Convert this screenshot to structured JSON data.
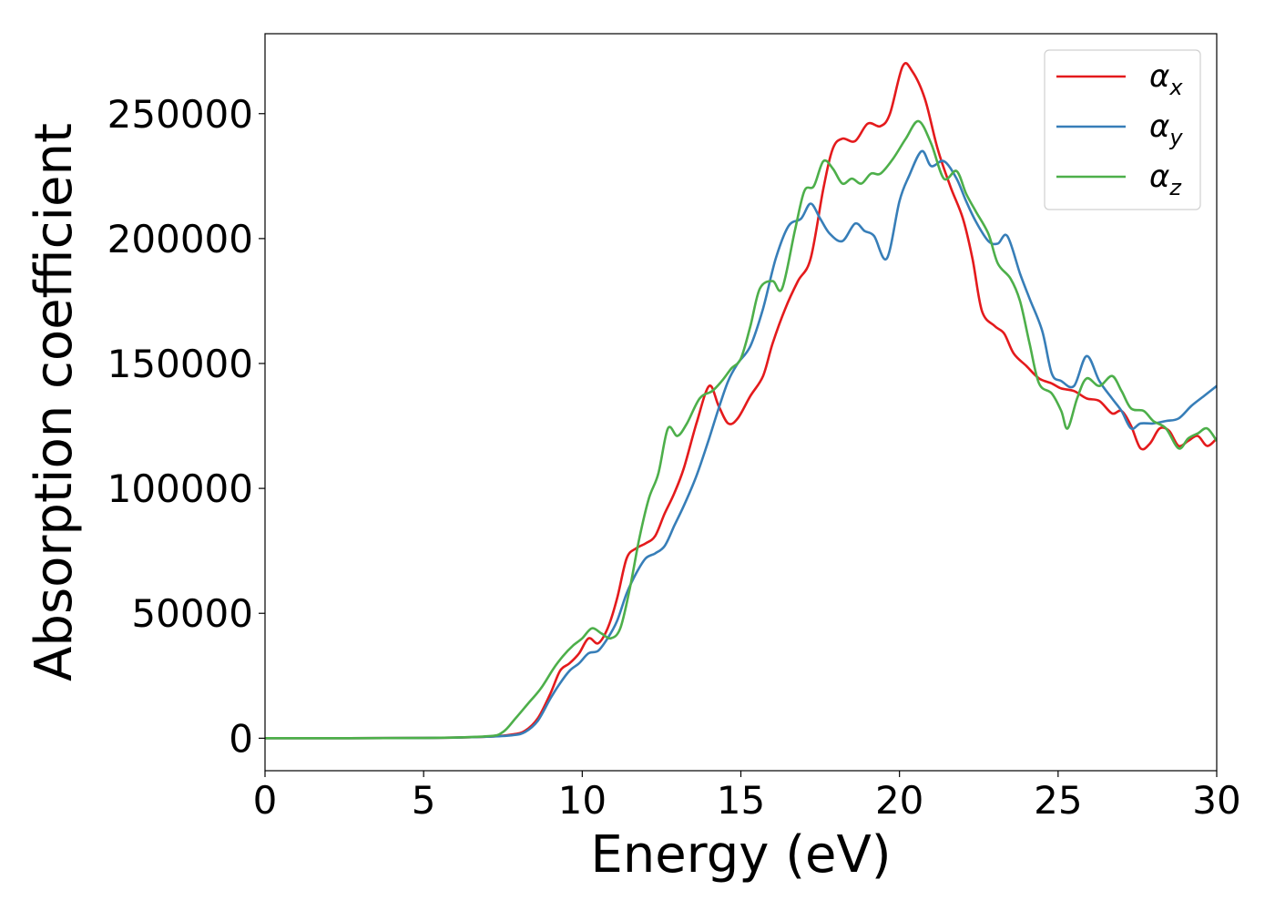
{
  "chart_data": {
    "type": "line",
    "xlabel": "Energy (eV)",
    "ylabel": "Absorption coefficient",
    "xlim": [
      0,
      30
    ],
    "ylim": [
      -13000,
      282000
    ],
    "xticks": [
      0,
      5,
      10,
      15,
      20,
      25,
      30
    ],
    "yticks": [
      0,
      50000,
      100000,
      150000,
      200000,
      250000
    ],
    "grid": false,
    "legend_position": "top-right",
    "series": [
      {
        "name": "α_x",
        "label_base": "α",
        "label_sub": "x",
        "color": "#e41a1c",
        "points": [
          [
            0,
            0
          ],
          [
            5,
            100
          ],
          [
            7,
            600
          ],
          [
            7.8,
            1500
          ],
          [
            8.2,
            3000
          ],
          [
            8.6,
            8000
          ],
          [
            9,
            18000
          ],
          [
            9.3,
            27000
          ],
          [
            9.6,
            30000
          ],
          [
            9.9,
            34000
          ],
          [
            10.2,
            40000
          ],
          [
            10.5,
            38000
          ],
          [
            10.8,
            44000
          ],
          [
            11.1,
            56000
          ],
          [
            11.4,
            72000
          ],
          [
            11.7,
            76000
          ],
          [
            12,
            78000
          ],
          [
            12.3,
            81000
          ],
          [
            12.6,
            90000
          ],
          [
            12.9,
            98000
          ],
          [
            13.2,
            108000
          ],
          [
            13.6,
            126000
          ],
          [
            14,
            141000
          ],
          [
            14.3,
            133000
          ],
          [
            14.6,
            126000
          ],
          [
            14.9,
            128000
          ],
          [
            15.3,
            137000
          ],
          [
            15.7,
            145000
          ],
          [
            16,
            158000
          ],
          [
            16.4,
            172000
          ],
          [
            16.8,
            183000
          ],
          [
            17.2,
            192000
          ],
          [
            17.6,
            220000
          ],
          [
            17.9,
            236000
          ],
          [
            18.2,
            240000
          ],
          [
            18.6,
            239000
          ],
          [
            19,
            246000
          ],
          [
            19.4,
            245000
          ],
          [
            19.7,
            250000
          ],
          [
            20.1,
            269000
          ],
          [
            20.4,
            267000
          ],
          [
            20.8,
            256000
          ],
          [
            21.2,
            236000
          ],
          [
            21.6,
            221000
          ],
          [
            22,
            208000
          ],
          [
            22.3,
            192000
          ],
          [
            22.6,
            171000
          ],
          [
            23,
            165000
          ],
          [
            23.3,
            162000
          ],
          [
            23.6,
            154000
          ],
          [
            24,
            149000
          ],
          [
            24.4,
            144000
          ],
          [
            24.8,
            142000
          ],
          [
            25.1,
            140000
          ],
          [
            25.5,
            139000
          ],
          [
            25.9,
            136000
          ],
          [
            26.3,
            135000
          ],
          [
            26.7,
            130000
          ],
          [
            27,
            131000
          ],
          [
            27.3,
            125000
          ],
          [
            27.6,
            116000
          ],
          [
            27.9,
            118000
          ],
          [
            28.2,
            124000
          ],
          [
            28.5,
            123000
          ],
          [
            28.8,
            117000
          ],
          [
            29.1,
            119000
          ],
          [
            29.4,
            121000
          ],
          [
            29.7,
            117000
          ],
          [
            30,
            120000
          ]
        ]
      },
      {
        "name": "α_y",
        "label_base": "α",
        "label_sub": "y",
        "color": "#377eb8",
        "points": [
          [
            0,
            0
          ],
          [
            5,
            100
          ],
          [
            7,
            600
          ],
          [
            7.8,
            1200
          ],
          [
            8.2,
            2500
          ],
          [
            8.6,
            7000
          ],
          [
            9,
            16000
          ],
          [
            9.3,
            22000
          ],
          [
            9.6,
            27000
          ],
          [
            9.9,
            30000
          ],
          [
            10.2,
            34000
          ],
          [
            10.5,
            35000
          ],
          [
            10.8,
            40000
          ],
          [
            11.1,
            47000
          ],
          [
            11.4,
            58000
          ],
          [
            11.7,
            66000
          ],
          [
            12,
            72000
          ],
          [
            12.3,
            74000
          ],
          [
            12.6,
            77000
          ],
          [
            12.9,
            85000
          ],
          [
            13.2,
            93000
          ],
          [
            13.6,
            105000
          ],
          [
            14,
            120000
          ],
          [
            14.3,
            132000
          ],
          [
            14.6,
            143000
          ],
          [
            14.9,
            150000
          ],
          [
            15.3,
            157000
          ],
          [
            15.7,
            172000
          ],
          [
            16.1,
            192000
          ],
          [
            16.5,
            205000
          ],
          [
            16.9,
            208000
          ],
          [
            17.2,
            214000
          ],
          [
            17.5,
            208000
          ],
          [
            17.8,
            202000
          ],
          [
            18.2,
            199000
          ],
          [
            18.6,
            206000
          ],
          [
            18.9,
            203000
          ],
          [
            19.2,
            201000
          ],
          [
            19.6,
            192000
          ],
          [
            20,
            215000
          ],
          [
            20.3,
            225000
          ],
          [
            20.7,
            235000
          ],
          [
            21,
            229000
          ],
          [
            21.4,
            231000
          ],
          [
            21.8,
            224000
          ],
          [
            22.1,
            215000
          ],
          [
            22.4,
            207000
          ],
          [
            22.8,
            199000
          ],
          [
            23.1,
            198000
          ],
          [
            23.4,
            201000
          ],
          [
            23.8,
            186000
          ],
          [
            24.1,
            176000
          ],
          [
            24.5,
            163000
          ],
          [
            24.8,
            146000
          ],
          [
            25.1,
            143000
          ],
          [
            25.5,
            141000
          ],
          [
            25.9,
            153000
          ],
          [
            26.3,
            143000
          ],
          [
            26.7,
            136000
          ],
          [
            27,
            131000
          ],
          [
            27.3,
            124000
          ],
          [
            27.6,
            126000
          ],
          [
            28,
            126000
          ],
          [
            28.4,
            127000
          ],
          [
            28.8,
            128000
          ],
          [
            29.2,
            133000
          ],
          [
            29.6,
            137000
          ],
          [
            30,
            141000
          ]
        ]
      },
      {
        "name": "α_z",
        "label_base": "α",
        "label_sub": "z",
        "color": "#4daf4a",
        "points": [
          [
            0,
            0
          ],
          [
            5,
            100
          ],
          [
            7,
            800
          ],
          [
            7.5,
            2500
          ],
          [
            7.9,
            8000
          ],
          [
            8.3,
            14000
          ],
          [
            8.7,
            20000
          ],
          [
            9.1,
            28000
          ],
          [
            9.4,
            33000
          ],
          [
            9.7,
            37000
          ],
          [
            10,
            40000
          ],
          [
            10.3,
            44000
          ],
          [
            10.6,
            42000
          ],
          [
            10.9,
            40000
          ],
          [
            11.2,
            44000
          ],
          [
            11.5,
            60000
          ],
          [
            11.8,
            80000
          ],
          [
            12.1,
            96000
          ],
          [
            12.4,
            106000
          ],
          [
            12.7,
            124000
          ],
          [
            13,
            121000
          ],
          [
            13.3,
            126000
          ],
          [
            13.7,
            136000
          ],
          [
            14.1,
            139000
          ],
          [
            14.4,
            143000
          ],
          [
            14.7,
            148000
          ],
          [
            15,
            152000
          ],
          [
            15.3,
            165000
          ],
          [
            15.6,
            180000
          ],
          [
            16,
            183000
          ],
          [
            16.3,
            180000
          ],
          [
            16.7,
            203000
          ],
          [
            17,
            219000
          ],
          [
            17.3,
            221000
          ],
          [
            17.6,
            231000
          ],
          [
            17.9,
            228000
          ],
          [
            18.2,
            222000
          ],
          [
            18.5,
            224000
          ],
          [
            18.8,
            222000
          ],
          [
            19.1,
            226000
          ],
          [
            19.4,
            226000
          ],
          [
            19.8,
            232000
          ],
          [
            20.2,
            240000
          ],
          [
            20.6,
            247000
          ],
          [
            21,
            238000
          ],
          [
            21.4,
            224000
          ],
          [
            21.8,
            227000
          ],
          [
            22.1,
            218000
          ],
          [
            22.4,
            211000
          ],
          [
            22.8,
            202000
          ],
          [
            23.1,
            190000
          ],
          [
            23.5,
            184000
          ],
          [
            23.8,
            175000
          ],
          [
            24.1,
            158000
          ],
          [
            24.4,
            142000
          ],
          [
            24.8,
            138000
          ],
          [
            25.1,
            131000
          ],
          [
            25.3,
            124000
          ],
          [
            25.6,
            136000
          ],
          [
            25.9,
            144000
          ],
          [
            26.3,
            141000
          ],
          [
            26.7,
            145000
          ],
          [
            27,
            139000
          ],
          [
            27.3,
            132000
          ],
          [
            27.7,
            131000
          ],
          [
            28,
            127000
          ],
          [
            28.4,
            124000
          ],
          [
            28.8,
            116000
          ],
          [
            29.1,
            120000
          ],
          [
            29.4,
            122000
          ],
          [
            29.7,
            124000
          ],
          [
            30,
            119000
          ]
        ]
      }
    ]
  }
}
